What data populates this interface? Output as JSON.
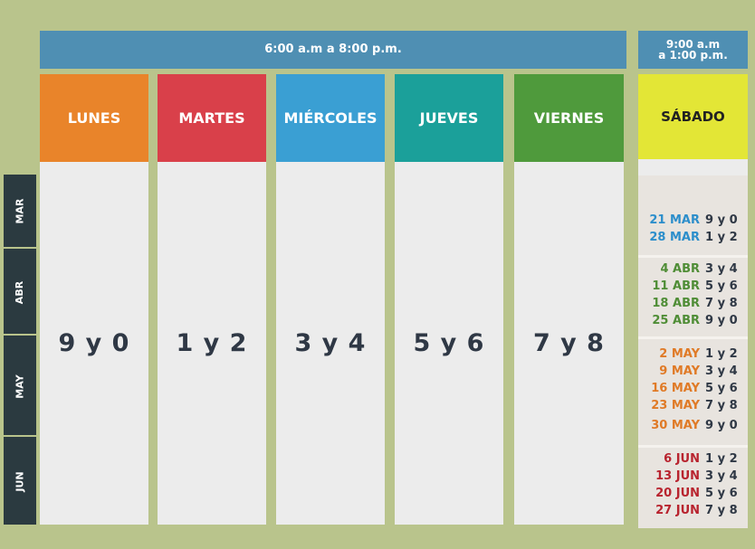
{
  "header": {
    "weekday_hours": "6:00 a.m a 8:00 p.m.",
    "saturday_hours_line1": "9:00 a.m",
    "saturday_hours_line2": "a 1:00 p.m."
  },
  "days": [
    {
      "name": "LUNES",
      "digits": "9 y 0",
      "color": "#e9842a"
    },
    {
      "name": "MARTES",
      "digits": "1 y 2",
      "color": "#d9404a"
    },
    {
      "name": "MIÉRCOLES",
      "digits": "3 y 4",
      "color": "#3a9fd3"
    },
    {
      "name": "JUEVES",
      "digits": "5 y 6",
      "color": "#1ba09a"
    },
    {
      "name": "VIERNES",
      "digits": "7 y 8",
      "color": "#4f9a3c"
    }
  ],
  "months": [
    "MAR",
    "ABR",
    "MAY",
    "JUN"
  ],
  "saturday": {
    "title": "SÁBADO",
    "groups": [
      {
        "color": "#2c8ecb",
        "rows": [
          {
            "date": "21 MAR",
            "digits": "9 y 0"
          },
          {
            "date": "28 MAR",
            "digits": "1 y 2"
          }
        ]
      },
      {
        "color": "#4f8d36",
        "rows": [
          {
            "date": "4 ABR",
            "digits": "3 y 4"
          },
          {
            "date": "11 ABR",
            "digits": "5 y 6"
          },
          {
            "date": "18 ABR",
            "digits": "7 y 8"
          },
          {
            "date": "25 ABR",
            "digits": "9 y 0"
          }
        ]
      },
      {
        "color": "#e07a26",
        "rows": [
          {
            "date": "2 MAY",
            "digits": "1 y 2"
          },
          {
            "date": "9 MAY",
            "digits": "3 y 4"
          },
          {
            "date": "16 MAY",
            "digits": "5 y 6"
          },
          {
            "date": "23 MAY",
            "digits": "7 y 8"
          },
          {
            "date": "30 MAY",
            "digits": "9 y 0"
          }
        ]
      },
      {
        "color": "#b8232e",
        "rows": [
          {
            "date": "6 JUN",
            "digits": "1 y 2"
          },
          {
            "date": "13 JUN",
            "digits": "3 y 4"
          },
          {
            "date": "20 JUN",
            "digits": "5 y 6"
          },
          {
            "date": "27 JUN",
            "digits": "7 y 8"
          }
        ]
      }
    ]
  }
}
